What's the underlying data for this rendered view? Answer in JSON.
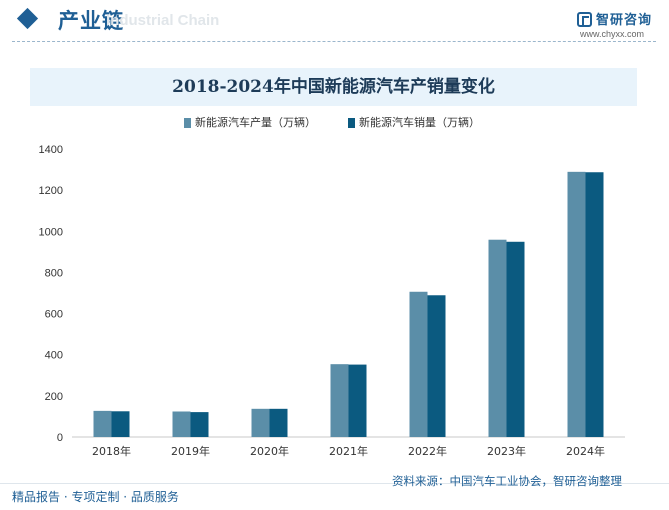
{
  "header": {
    "section_title": "产业链",
    "section_subtitle": "Industrial Chain",
    "brand_name": "智研咨询",
    "brand_url": "www.chyxx.com"
  },
  "colors": {
    "primary": "#1f5f95",
    "series_production": "#5b8ea8",
    "series_sales": "#0b5a80",
    "title_bar_bg": "#e8f3fb"
  },
  "chart_data": {
    "type": "bar",
    "title": "2018-2024年中国新能源汽车产销量变化",
    "categories": [
      "2018年",
      "2019年",
      "2020年",
      "2021年",
      "2022年",
      "2023年",
      "2024年"
    ],
    "series": [
      {
        "name": "新能源汽车产量（万辆）",
        "values": [
          127,
          124,
          137,
          354,
          706,
          959,
          1289
        ]
      },
      {
        "name": "新能源汽车销量（万辆）",
        "values": [
          125,
          121,
          137,
          352,
          689,
          949,
          1287
        ]
      }
    ],
    "ylim": [
      0,
      1400
    ],
    "yticks": [
      0,
      200,
      400,
      600,
      800,
      1000,
      1200,
      1400
    ],
    "xlabel": "",
    "ylabel": "",
    "grid": false,
    "legend_position": "top-center"
  },
  "footer": {
    "left": "精品报告 · 专项定制 · 品质服务",
    "source": "资料来源：中国汽车工业协会，智研咨询整理"
  }
}
